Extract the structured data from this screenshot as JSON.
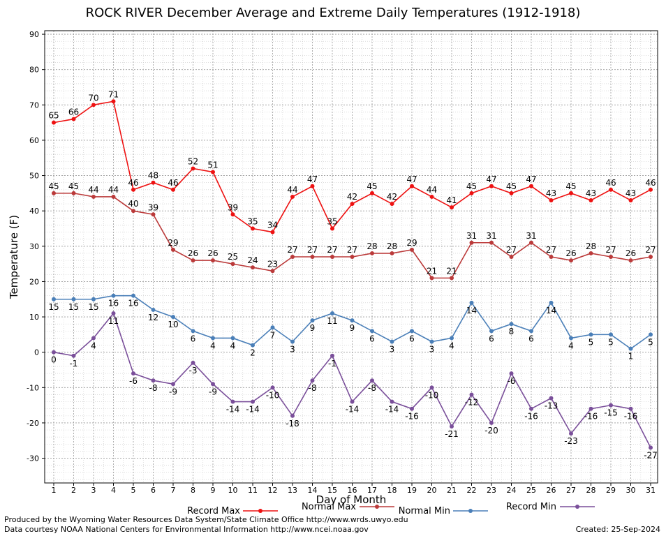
{
  "chart_data": {
    "type": "line",
    "title": "ROCK RIVER December Average and Extreme Daily Temperatures (1912-1918)",
    "xlabel": "Day of Month",
    "ylabel": "Temperature (F)",
    "ylim": [
      -37,
      91
    ],
    "yticks": [
      -30,
      -20,
      -10,
      0,
      10,
      20,
      30,
      40,
      50,
      60,
      70,
      80,
      90
    ],
    "grid": true,
    "legend_position": "bottom",
    "x": [
      1,
      2,
      3,
      4,
      5,
      6,
      7,
      8,
      9,
      10,
      11,
      12,
      13,
      14,
      15,
      16,
      17,
      18,
      19,
      20,
      21,
      22,
      23,
      24,
      25,
      26,
      27,
      28,
      29,
      30,
      31
    ],
    "series": [
      {
        "name": "Record Max",
        "color": "#ee1111",
        "label_pos": "above",
        "values": [
          65,
          66,
          70,
          71,
          46,
          48,
          46,
          52,
          51,
          39,
          35,
          34,
          44,
          47,
          35,
          42,
          45,
          42,
          47,
          44,
          41,
          45,
          47,
          45,
          47,
          43,
          45,
          43,
          46,
          43,
          46
        ]
      },
      {
        "name": "Normal Max",
        "color": "#bb3a3a",
        "label_pos": "above",
        "values": [
          45,
          45,
          44,
          44,
          40,
          39,
          29,
          26,
          26,
          25,
          24,
          23,
          27,
          27,
          27,
          27,
          28,
          28,
          29,
          21,
          21,
          31,
          31,
          27,
          31,
          27,
          26,
          28,
          27,
          26,
          27
        ]
      },
      {
        "name": "Normal Min",
        "color": "#4a7fb8",
        "label_pos": "below",
        "values": [
          15,
          15,
          15,
          16,
          16,
          12,
          10,
          6,
          4,
          4,
          2,
          7,
          3,
          9,
          11,
          9,
          6,
          3,
          6,
          3,
          4,
          14,
          6,
          8,
          6,
          14,
          4,
          5,
          5,
          1,
          5
        ]
      },
      {
        "name": "Record Min",
        "color": "#7a4f9a",
        "label_pos": "below",
        "values": [
          0,
          -1,
          4,
          11,
          -6,
          -8,
          -9,
          -3,
          -9,
          -14,
          -14,
          -10,
          -18,
          -8,
          -1,
          -14,
          -8,
          -14,
          -16,
          -10,
          -21,
          -12,
          -20,
          -6,
          -16,
          -13,
          -23,
          -16,
          -15,
          -16,
          -27
        ]
      }
    ]
  },
  "footer": {
    "line1": "Produced by the Wyoming Water Resources Data System/State Climate Office http://www.wrds.uwyo.edu",
    "line2": "Data courtesy NOAA National Centers for Environmental Information http://www.ncei.noaa.gov",
    "created": "Created:  25-Sep-2024"
  }
}
